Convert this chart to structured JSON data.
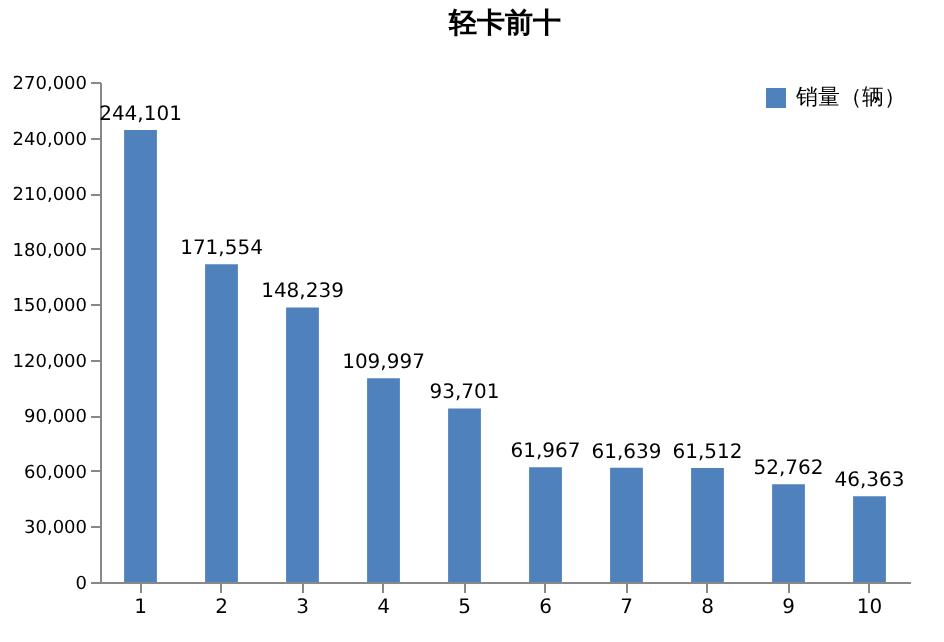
{
  "chart_data": {
    "type": "bar",
    "title": "轻卡前十",
    "categories": [
      "1",
      "2",
      "3",
      "4",
      "5",
      "6",
      "7",
      "8",
      "9",
      "10"
    ],
    "series": [
      {
        "name": "销量（辆）",
        "color": "#4f81bd",
        "values": [
          244101,
          171554,
          148239,
          109997,
          93701,
          61967,
          61639,
          61512,
          52762,
          46363
        ],
        "value_labels": [
          "244,101",
          "171,554",
          "148,239",
          "109,997",
          "93,701",
          "61,967",
          "61,639",
          "61,512",
          "52,762",
          "46,363"
        ]
      }
    ],
    "ylim": [
      0,
      270000
    ],
    "yticks": [
      {
        "value": 0,
        "label": "0"
      },
      {
        "value": 30000,
        "label": "30,000"
      },
      {
        "value": 60000,
        "label": "60,000"
      },
      {
        "value": 90000,
        "label": "90,000"
      },
      {
        "value": 120000,
        "label": "120,000"
      },
      {
        "value": 150000,
        "label": "150,000"
      },
      {
        "value": 180000,
        "label": "180,000"
      },
      {
        "value": 210000,
        "label": "210,000"
      },
      {
        "value": 240000,
        "label": "240,000"
      },
      {
        "value": 270000,
        "label": "270,000"
      }
    ],
    "grid": false,
    "legend": "top right"
  }
}
